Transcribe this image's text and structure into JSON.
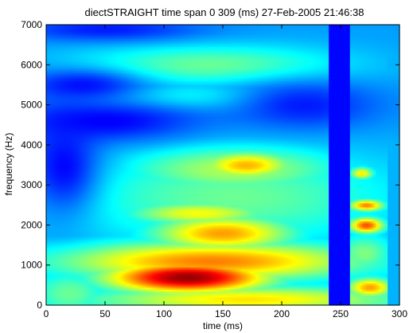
{
  "chart_data": {
    "type": "heatmap",
    "title": "diectSTRAIGHT time span 0 309 (ms) 27-Feb-2005 21:46:38",
    "xlabel": "time (ms)",
    "ylabel": "frequency (Hz)",
    "xlim": [
      0,
      300
    ],
    "ylim": [
      0,
      7000
    ],
    "x_ticks": [
      0,
      50,
      100,
      150,
      200,
      250,
      300
    ],
    "y_ticks": [
      0,
      1000,
      2000,
      3000,
      4000,
      5000,
      6000,
      7000
    ],
    "colormap": "jet",
    "colormap_stops": [
      "#00008f",
      "#0000ff",
      "#00ffff",
      "#ffff00",
      "#ff0000",
      "#800000"
    ],
    "value_range": [
      0,
      1
    ],
    "grid": false,
    "legend": "none",
    "background_level": 0.28,
    "low_energy_columns": [
      {
        "t_start": 241,
        "t_end": 258,
        "level": 0.08
      }
    ],
    "spectral_regions": [
      {
        "name": "fundamental-band",
        "t_center": 120,
        "t_span": 70,
        "f_center": 700,
        "f_span": 400,
        "level": 0.98
      },
      {
        "name": "low-band",
        "t_center": 140,
        "t_span": 130,
        "f_center": 1100,
        "f_span": 500,
        "level": 0.75
      },
      {
        "name": "rising-band",
        "t_center": 150,
        "t_span": 60,
        "f_center": 1800,
        "f_span": 450,
        "level": 0.72
      },
      {
        "name": "formant-2300",
        "t_center": 130,
        "t_span": 60,
        "f_center": 2300,
        "f_span": 300,
        "level": 0.62
      },
      {
        "name": "formant-3500",
        "t_center": 170,
        "t_span": 40,
        "f_center": 3500,
        "f_span": 350,
        "level": 0.7
      },
      {
        "name": "formant-3500-spread",
        "t_center": 160,
        "t_span": 90,
        "f_center": 3400,
        "f_span": 600,
        "level": 0.55
      },
      {
        "name": "low-floor",
        "t_center": 170,
        "t_span": 140,
        "f_center": 150,
        "f_span": 350,
        "level": 0.65
      },
      {
        "name": "mid-spread",
        "t_center": 160,
        "t_span": 140,
        "f_center": 2700,
        "f_span": 1200,
        "level": 0.48
      },
      {
        "name": "high-band",
        "t_center": 140,
        "t_span": 110,
        "f_center": 6000,
        "f_span": 500,
        "level": 0.48
      },
      {
        "name": "high-band-2",
        "t_center": 120,
        "t_span": 80,
        "f_center": 5200,
        "f_span": 350,
        "level": 0.4
      },
      {
        "name": "tail-2000",
        "t_center": 272,
        "t_span": 15,
        "f_center": 2000,
        "f_span": 200,
        "level": 0.8
      },
      {
        "name": "tail-2500",
        "t_center": 272,
        "t_span": 15,
        "f_center": 2500,
        "f_span": 150,
        "level": 0.75
      },
      {
        "name": "tail-3300",
        "t_center": 268,
        "t_span": 10,
        "f_center": 3300,
        "f_span": 150,
        "level": 0.65
      },
      {
        "name": "tail-500",
        "t_center": 275,
        "t_span": 20,
        "f_center": 450,
        "f_span": 250,
        "level": 0.72
      },
      {
        "name": "tail-1200",
        "t_center": 270,
        "t_span": 25,
        "f_center": 1300,
        "f_span": 500,
        "level": 0.5
      },
      {
        "name": "onset-low",
        "t_center": 20,
        "t_span": 35,
        "f_center": 300,
        "f_span": 600,
        "level": 0.48
      }
    ],
    "low_energy_regions": [
      {
        "name": "dark-4500",
        "t_center": 50,
        "t_span": 80,
        "f_center": 4600,
        "f_span": 500,
        "level": 0.12
      },
      {
        "name": "dark-5500",
        "t_center": 30,
        "t_span": 50,
        "f_center": 5500,
        "f_span": 400,
        "level": 0.14
      },
      {
        "name": "dark-6800",
        "t_center": 50,
        "t_span": 80,
        "f_center": 6900,
        "f_span": 300,
        "level": 0.15
      },
      {
        "name": "dark-5000-right",
        "t_center": 220,
        "t_span": 60,
        "f_center": 5000,
        "f_span": 600,
        "level": 0.15
      },
      {
        "name": "dark-3800-left",
        "t_center": 15,
        "t_span": 30,
        "f_center": 3500,
        "f_span": 1200,
        "level": 0.13
      }
    ]
  }
}
